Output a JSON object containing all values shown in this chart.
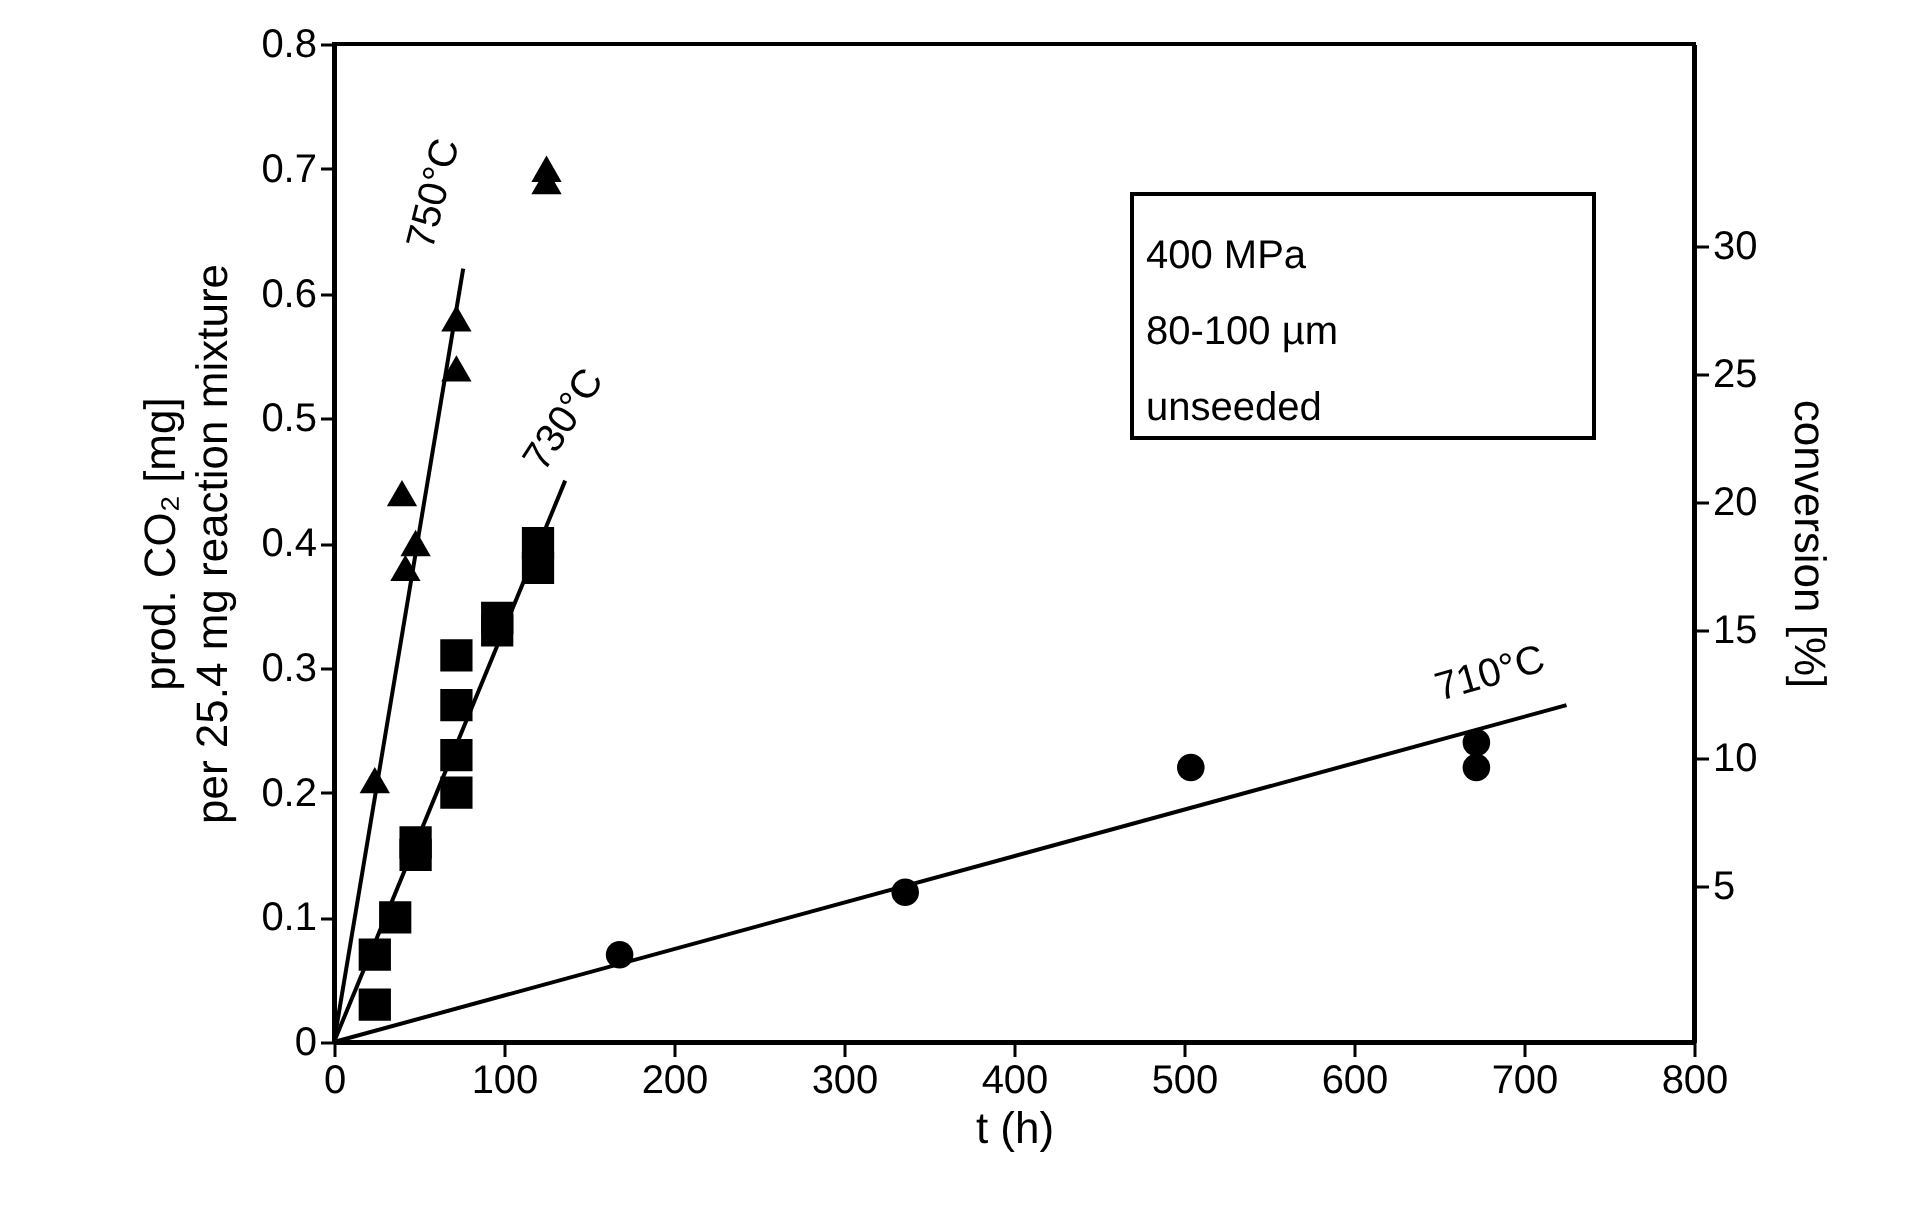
{
  "chart_data": {
    "type": "scatter",
    "xlabel": "t (h)",
    "ylabel": "prod. CO₂ [mg]\nper 25.4 mg reaction mixture",
    "y2label": "conversion [%]",
    "xlim": [
      0,
      800
    ],
    "xticks": [
      0,
      100,
      200,
      300,
      400,
      500,
      600,
      700,
      800
    ],
    "ylim": [
      0,
      0.8
    ],
    "yticks": [
      0,
      0.1,
      0.2,
      0.3,
      0.4,
      0.5,
      0.6,
      0.7,
      0.8
    ],
    "y2lim": [
      -1.1,
      37.9
    ],
    "y2ticks": [
      5,
      10,
      15,
      20,
      25,
      30
    ],
    "grid": false,
    "series": [
      {
        "marker": "triangle",
        "color": "#000000",
        "x": [
          24,
          40,
          42,
          48,
          72,
          72,
          125,
          125
        ],
        "values": [
          0.21,
          0.44,
          0.38,
          0.4,
          0.54,
          0.58,
          0.7,
          0.69
        ]
      },
      {
        "marker": "square",
        "color": "#000000",
        "x": [
          24,
          24,
          36,
          48,
          48,
          72,
          72,
          72,
          72,
          96,
          96,
          120,
          120
        ],
        "values": [
          0.03,
          0.07,
          0.1,
          0.15,
          0.16,
          0.2,
          0.23,
          0.27,
          0.31,
          0.33,
          0.34,
          0.38,
          0.4
        ]
      },
      {
        "marker": "circle",
        "color": "#000000",
        "x": [
          168,
          336,
          504,
          672,
          672
        ],
        "values": [
          0.07,
          0.12,
          0.22,
          0.22,
          0.24
        ]
      },
      {
        "type": "line",
        "color": "#000000",
        "x": [
          0,
          76
        ],
        "values": [
          0,
          0.62
        ]
      },
      {
        "type": "line",
        "color": "#000000",
        "x": [
          0,
          136
        ],
        "values": [
          0,
          0.45
        ]
      },
      {
        "type": "line",
        "color": "#000000",
        "x": [
          0,
          725
        ],
        "values": [
          0,
          0.27
        ]
      }
    ],
    "annotations": [
      "750°C",
      "730°C",
      "710°C",
      "400 MPa",
      "80-100 µm",
      "unseeded"
    ]
  }
}
